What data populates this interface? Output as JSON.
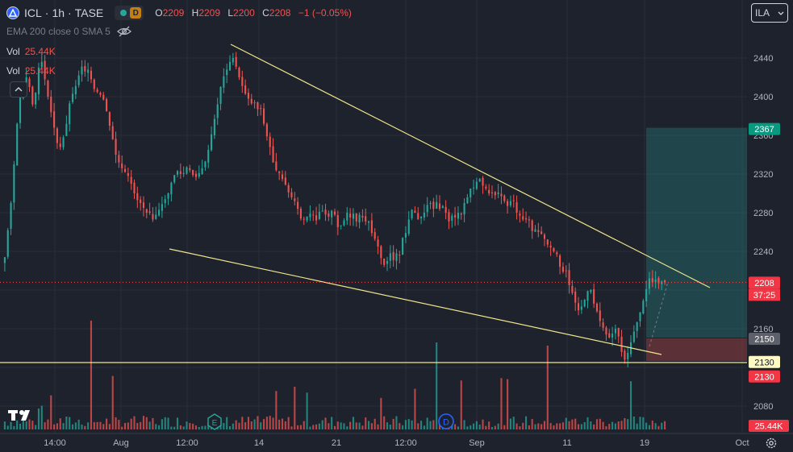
{
  "header": {
    "symbol": "ICL",
    "interval": "1h",
    "exchange": "TASE",
    "separator": "·",
    "delay_badge": "D",
    "ohlc": {
      "o_label": "O",
      "o": "2209",
      "h_label": "H",
      "h": "2209",
      "l_label": "L",
      "l": "2200",
      "c_label": "C",
      "c": "2208",
      "change": "−1 (−0.05%)"
    }
  },
  "indicators": {
    "ema_line": "EMA 200 close 0 SMA 5",
    "vol1_label": "Vol",
    "vol1_value": "25.44K",
    "vol2_label": "Vol",
    "vol2_value": "25.44K"
  },
  "symbol_select": {
    "label": "ILA"
  },
  "colors": {
    "background": "#1e222d",
    "up": "#26a69a",
    "down": "#ef5350",
    "trendline": "#f0e68c",
    "profit_zone": "#26a69a",
    "loss_zone": "#ef5350",
    "axis_text": "#b2b5be"
  },
  "chart_data": {
    "type": "candlestick",
    "series": [
      {
        "name": "ICL 1h TASE",
        "values": [
          2234,
          2262,
          2290,
          2330,
          2372,
          2400,
          2415,
          2420,
          2410,
          2392,
          2404,
          2430,
          2436,
          2418,
          2400,
          2384,
          2368,
          2352,
          2348,
          2358,
          2372,
          2393,
          2403,
          2411,
          2422,
          2431,
          2426,
          2428,
          2418,
          2408,
          2405,
          2402,
          2397,
          2385,
          2370,
          2356,
          2340,
          2332,
          2326,
          2322,
          2318,
          2310,
          2300,
          2293,
          2290,
          2285,
          2280,
          2280,
          2273,
          2278,
          2283,
          2289,
          2294,
          2300,
          2311,
          2319,
          2323,
          2320,
          2321,
          2327,
          2324,
          2319,
          2317,
          2321,
          2326,
          2333,
          2345,
          2361,
          2377,
          2392,
          2410,
          2421,
          2428,
          2436,
          2440,
          2431,
          2420,
          2411,
          2403,
          2398,
          2393,
          2394,
          2387,
          2388,
          2372,
          2359,
          2348,
          2332,
          2324,
          2321,
          2315,
          2309,
          2301,
          2296,
          2292,
          2284,
          2274,
          2273,
          2276,
          2279,
          2278,
          2272,
          2281,
          2282,
          2278,
          2276,
          2282,
          2278,
          2265,
          2267,
          2272,
          2280,
          2275,
          2279,
          2271,
          2278,
          2275,
          2271,
          2271,
          2259,
          2253,
          2245,
          2233,
          2226,
          2230,
          2238,
          2231,
          2238,
          2236,
          2254,
          2259,
          2273,
          2283,
          2280,
          2273,
          2276,
          2280,
          2288,
          2290,
          2284,
          2291,
          2284,
          2287,
          2280,
          2271,
          2277,
          2275,
          2280,
          2278,
          2290,
          2296,
          2305,
          2306,
          2312,
          2315,
          2308,
          2305,
          2300,
          2300,
          2298,
          2301,
          2297,
          2292,
          2287,
          2292,
          2292,
          2280,
          2277,
          2273,
          2273,
          2272,
          2261,
          2263,
          2260,
          2258,
          2253,
          2247,
          2244,
          2240,
          2237,
          2224,
          2219,
          2220,
          2205,
          2197,
          2187,
          2179,
          2183,
          2190,
          2199,
          2200,
          2186,
          2178,
          2168,
          2161,
          2154,
          2151,
          2155,
          2160,
          2152,
          2136,
          2128,
          2135,
          2146,
          2157,
          2167,
          2177,
          2189,
          2201,
          2212,
          2208,
          2211,
          2207,
          2209,
          2208
        ]
      }
    ],
    "volumes_relative": "estimated",
    "x_tick_labels": [
      "14:00",
      "Aug",
      "12:00",
      "14",
      "21",
      "12:00",
      "Sep",
      "11",
      "19",
      "Oct"
    ],
    "y_tick_labels": [
      "2440",
      "2400",
      "2360",
      "2320",
      "2280",
      "2240",
      "2160",
      "2080"
    ],
    "ylim": [
      2050,
      2460
    ],
    "last_price": {
      "value": "2208",
      "countdown": "37:25"
    },
    "price_labels": {
      "target": "2367",
      "entry": "2150",
      "level": "2130",
      "stop": "2130",
      "volume": "25.44K"
    },
    "levels": {
      "horizontal_line": 2130,
      "entry": 2150,
      "target": 2367,
      "stop": 2130
    },
    "markers": [
      {
        "label": "E"
      },
      {
        "label": "D"
      }
    ]
  }
}
